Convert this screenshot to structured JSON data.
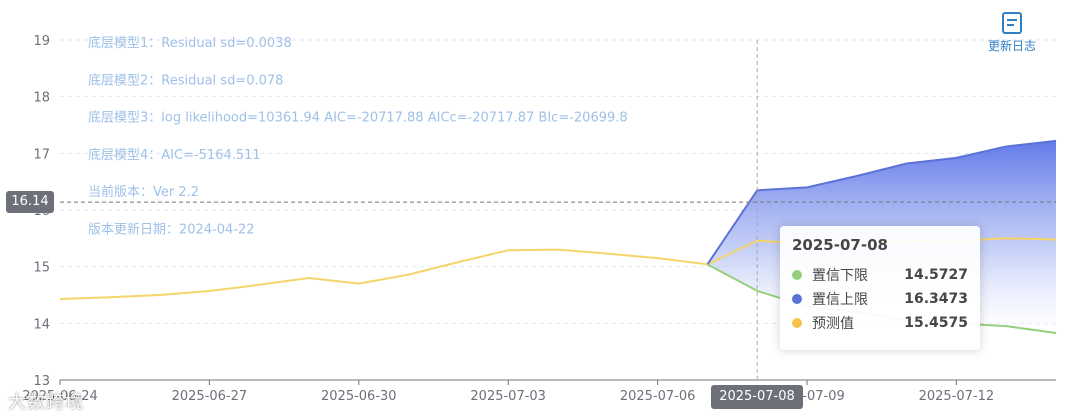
{
  "chart_data": {
    "type": "line",
    "ylim": [
      13,
      19
    ],
    "yticks": [
      13,
      14,
      15,
      16,
      17,
      18,
      19
    ],
    "x": [
      "2025-06-24",
      "2025-06-25",
      "2025-06-26",
      "2025-06-27",
      "2025-06-28",
      "2025-06-29",
      "2025-06-30",
      "2025-07-01",
      "2025-07-02",
      "2025-07-03",
      "2025-07-04",
      "2025-07-05",
      "2025-07-06",
      "2025-07-07",
      "2025-07-08",
      "2025-07-09",
      "2025-07-10",
      "2025-07-11",
      "2025-07-12",
      "2025-07-13",
      "2025-07-14"
    ],
    "xtick_labels": [
      "2025-06-24",
      "2025-06-27",
      "2025-06-30",
      "2025-07-03",
      "2025-07-06",
      "2025-07-09",
      "2025-07-12"
    ],
    "grid": true,
    "series": [
      {
        "name": "预测值",
        "color": "#f5d46a",
        "values": [
          14.43,
          14.46,
          14.5,
          14.57,
          14.68,
          14.8,
          14.7,
          14.86,
          15.08,
          15.29,
          15.3,
          15.23,
          15.15,
          15.04,
          15.4575,
          15.4,
          15.42,
          15.45,
          15.46,
          15.5,
          15.48
        ]
      },
      {
        "name": "置信上限",
        "color": "#5b73d6",
        "values": [
          null,
          null,
          null,
          null,
          null,
          null,
          null,
          null,
          null,
          null,
          null,
          null,
          null,
          15.04,
          16.3473,
          16.4,
          16.6,
          16.82,
          16.92,
          17.12,
          17.22
        ]
      },
      {
        "name": "置信下限",
        "color": "#94d07c",
        "values": [
          null,
          null,
          null,
          null,
          null,
          null,
          null,
          null,
          null,
          null,
          null,
          null,
          null,
          15.04,
          14.5727,
          14.3,
          14.2,
          14.05,
          14.0,
          13.95,
          13.83
        ]
      }
    ],
    "annotations": [
      "底层模型1：Residual sd=0.0038",
      "底层模型2：Residual sd=0.078",
      "底层模型3：log likelihood=10361.94 AIC=-20717.88 AICc=-20717.87 BIc=-20699.8",
      "底层模型4：AIC=-5164.511",
      "当前版本：Ver 2.2",
      "版本更新日期：2024-04-22"
    ],
    "axis_pointer": {
      "y_value": "16.14",
      "x_value": "2025-07-08"
    },
    "tooltip": {
      "title": "2025-07-08",
      "rows": [
        {
          "name": "置信下限",
          "value": "14.5727",
          "color": "#94d07c"
        },
        {
          "name": "置信上限",
          "value": "16.3473",
          "color": "#5b73d6"
        },
        {
          "name": "预测值",
          "value": "15.4575",
          "color": "#f5c34a"
        }
      ]
    }
  },
  "toolbar": {
    "changelog_label": "更新日志",
    "changelog_icon": "document-icon"
  },
  "watermark": "大数跨境"
}
